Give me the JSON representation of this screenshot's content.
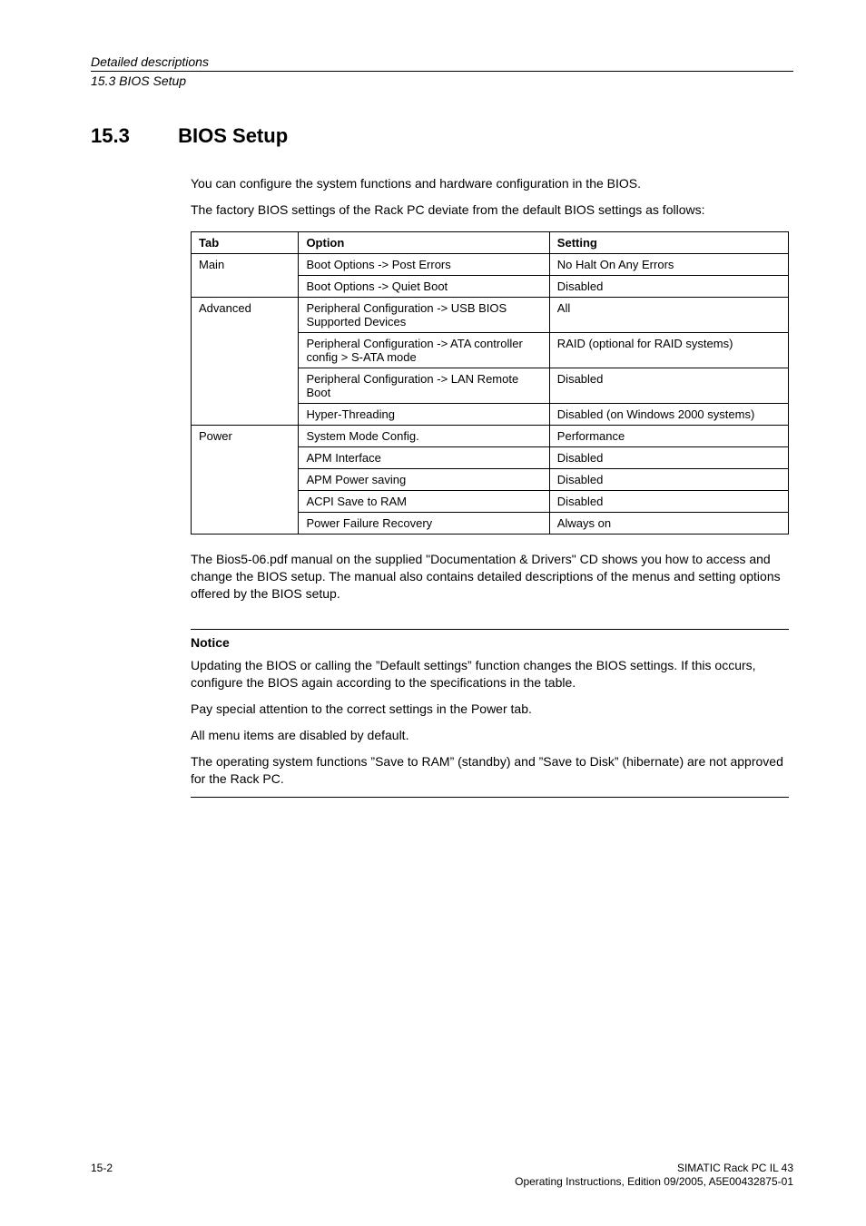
{
  "header": {
    "top": "Detailed descriptions",
    "sub": "15.3 BIOS Setup"
  },
  "section": {
    "number": "15.3",
    "title": "BIOS Setup"
  },
  "intro": {
    "line1": "You can configure the system functions and hardware configuration in the BIOS.",
    "line2": "The factory BIOS settings of the Rack PC deviate from the default BIOS settings as follows:"
  },
  "table": {
    "headers": {
      "tab": "Tab",
      "option": "Option",
      "setting": "Setting"
    },
    "rows": [
      {
        "tab": "Main",
        "tab_rowspan": 2,
        "option": "Boot Options -> Post Errors",
        "setting": "No Halt On Any Errors"
      },
      {
        "tab": "",
        "option": "Boot Options -> Quiet Boot",
        "setting": "Disabled"
      },
      {
        "tab": "Advanced",
        "tab_rowspan": 4,
        "option": "Peripheral Configuration -> USB BIOS Supported Devices",
        "setting": "All"
      },
      {
        "tab": "",
        "option": "Peripheral Configuration -> ATA controller config > S-ATA mode",
        "setting": "RAID (optional for RAID systems)"
      },
      {
        "tab": "",
        "option": "Peripheral Configuration -> LAN Remote Boot",
        "setting": "Disabled"
      },
      {
        "tab": "",
        "option": "Hyper-Threading",
        "setting": "Disabled (on Windows 2000 systems)"
      },
      {
        "tab": "Power",
        "tab_rowspan": 5,
        "option": "System Mode Config.",
        "setting": "Performance"
      },
      {
        "tab": "",
        "option": "APM Interface",
        "setting": "Disabled"
      },
      {
        "tab": "",
        "option": "APM Power saving",
        "setting": "Disabled"
      },
      {
        "tab": "",
        "option": "ACPI Save to RAM",
        "setting": "Disabled"
      },
      {
        "tab": "",
        "option": "Power Failure Recovery",
        "setting": "Always on"
      }
    ]
  },
  "after_table": "The Bios5-06.pdf manual on the supplied \"Documentation & Drivers\" CD shows you how to access and change the BIOS setup. The manual also contains detailed descriptions of the menus and setting options offered by the BIOS setup.",
  "notice": {
    "title": "Notice",
    "p1": "Updating the BIOS or calling the ”Default settings” function changes the BIOS settings. If this occurs, configure the BIOS again according to the specifications in the table.",
    "p2": "Pay special attention to the correct settings in the Power tab.",
    "p3": "All menu items are disabled by default.",
    "p4": "The operating system functions ”Save to RAM” (standby) and ”Save to Disk” (hibernate) are not approved for the Rack PC."
  },
  "footer": {
    "page": "15-2",
    "right1": "SIMATIC Rack PC IL 43",
    "right2": "Operating Instructions, Edition 09/2005, A5E00432875-01"
  }
}
